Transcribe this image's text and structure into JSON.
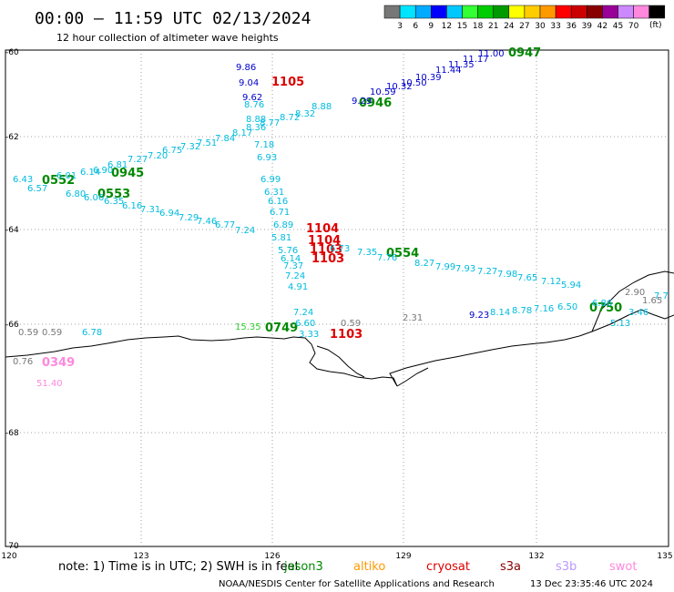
{
  "title": "00:00 – 11:59 UTC 02/13/2024",
  "subtitle": "12 hour collection of altimeter wave heights",
  "colorbar": {
    "colors": [
      "#777777",
      "#00e5ff",
      "#00aaff",
      "#0000ff",
      "#00c8ff",
      "#33ff33",
      "#00cc00",
      "#009900",
      "#ffff00",
      "#ffcc00",
      "#ff9900",
      "#ff0000",
      "#cc0000",
      "#880000",
      "#990099",
      "#cc88ff",
      "#ff88dd",
      "#000000"
    ],
    "labels": [
      "3",
      "6",
      "9",
      "12",
      "15",
      "18",
      "21",
      "24",
      "27",
      "30",
      "33",
      "36",
      "39",
      "42",
      "45",
      "70"
    ],
    "unit": "(ft)"
  },
  "axes": {
    "lat_labels": [
      "-60",
      "-62",
      "-64",
      "-66",
      "-68",
      "-70"
    ],
    "lon_labels": [
      "120",
      "123",
      "126",
      "129",
      "132",
      "135"
    ]
  },
  "time_labels": [
    {
      "text": "0947",
      "color": "#008800"
    },
    {
      "text": "1105",
      "color": "#dd0000"
    },
    {
      "text": "0946",
      "color": "#008800"
    },
    {
      "text": "0552",
      "color": "#008800"
    },
    {
      "text": "0945",
      "color": "#008800"
    },
    {
      "text": "0553",
      "color": "#008800"
    },
    {
      "text": "1104",
      "color": "#dd0000"
    },
    {
      "text": "1104",
      "color": "#dd0000"
    },
    {
      "text": "1103",
      "color": "#dd0000"
    },
    {
      "text": "1103",
      "color": "#dd0000"
    },
    {
      "text": "0554",
      "color": "#008800"
    },
    {
      "text": "0750",
      "color": "#008800"
    },
    {
      "text": "0749",
      "color": "#008800"
    },
    {
      "text": "1103",
      "color": "#dd0000"
    },
    {
      "text": "0349",
      "color": "#ff88dd"
    }
  ],
  "wave_values": [
    {
      "text": "11.00",
      "color": "#0000cc"
    },
    {
      "text": "11.17",
      "color": "#0000cc"
    },
    {
      "text": "11.35",
      "color": "#0000cc"
    },
    {
      "text": "11.44",
      "color": "#0000cc"
    },
    {
      "text": "10.39",
      "color": "#0000cc"
    },
    {
      "text": "10.50",
      "color": "#0000cc"
    },
    {
      "text": "10.32",
      "color": "#0000cc"
    },
    {
      "text": "10.59",
      "color": "#0000cc"
    },
    {
      "text": "9.29",
      "color": "#0000cc"
    },
    {
      "text": "9.62",
      "color": "#0000cc"
    },
    {
      "text": "9.86",
      "color": "#0000cc"
    },
    {
      "text": "9.04",
      "color": "#0000cc"
    },
    {
      "text": "8.88",
      "color": "#00bbdd"
    },
    {
      "text": "8.32",
      "color": "#00bbdd"
    },
    {
      "text": "8.72",
      "color": "#00bbdd"
    },
    {
      "text": "8.76",
      "color": "#00bbdd"
    },
    {
      "text": "8.88",
      "color": "#00bbdd"
    },
    {
      "text": "8.77",
      "color": "#00bbdd"
    },
    {
      "text": "8.36",
      "color": "#00bbdd"
    },
    {
      "text": "8.17",
      "color": "#00bbdd"
    },
    {
      "text": "7.84",
      "color": "#00bbdd"
    },
    {
      "text": "7.51",
      "color": "#00bbdd"
    },
    {
      "text": "7.32",
      "color": "#00bbdd"
    },
    {
      "text": "6.75",
      "color": "#00bbdd"
    },
    {
      "text": "7.20",
      "color": "#00bbdd"
    },
    {
      "text": "7.27",
      "color": "#00bbdd"
    },
    {
      "text": "6.81",
      "color": "#00bbdd"
    },
    {
      "text": "6.90",
      "color": "#00bbdd"
    },
    {
      "text": "6.14",
      "color": "#00bbdd"
    },
    {
      "text": "6.01",
      "color": "#00bbdd"
    },
    {
      "text": "6.43",
      "color": "#00bbdd"
    },
    {
      "text": "6.57",
      "color": "#00bbdd"
    },
    {
      "text": "6.80",
      "color": "#00bbdd"
    },
    {
      "text": "6.06",
      "color": "#00bbdd"
    },
    {
      "text": "6.35",
      "color": "#00bbdd"
    },
    {
      "text": "6.16",
      "color": "#00bbdd"
    },
    {
      "text": "7.31",
      "color": "#00bbdd"
    },
    {
      "text": "6.94",
      "color": "#00bbdd"
    },
    {
      "text": "7.29",
      "color": "#00bbdd"
    },
    {
      "text": "7.46",
      "color": "#00bbdd"
    },
    {
      "text": "6.77",
      "color": "#00bbdd"
    },
    {
      "text": "7.24",
      "color": "#00bbdd"
    },
    {
      "text": "7.18",
      "color": "#00bbdd"
    },
    {
      "text": "6.93",
      "color": "#00bbdd"
    },
    {
      "text": "6.99",
      "color": "#00bbdd"
    },
    {
      "text": "6.31",
      "color": "#00bbdd"
    },
    {
      "text": "6.16",
      "color": "#00bbdd"
    },
    {
      "text": "6.71",
      "color": "#00bbdd"
    },
    {
      "text": "6.89",
      "color": "#00bbdd"
    },
    {
      "text": "5.81",
      "color": "#00bbdd"
    },
    {
      "text": "5.76",
      "color": "#00bbdd"
    },
    {
      "text": "6.14",
      "color": "#00bbdd"
    },
    {
      "text": "7.37",
      "color": "#00bbdd"
    },
    {
      "text": "7.24",
      "color": "#00bbdd"
    },
    {
      "text": "4.91",
      "color": "#00bbdd"
    },
    {
      "text": "6.73",
      "color": "#00bbdd"
    },
    {
      "text": "7.35",
      "color": "#00bbdd"
    },
    {
      "text": "7.76",
      "color": "#00bbdd"
    },
    {
      "text": "8.27",
      "color": "#00bbdd"
    },
    {
      "text": "7.99",
      "color": "#00bbdd"
    },
    {
      "text": "7.93",
      "color": "#00bbdd"
    },
    {
      "text": "7.27",
      "color": "#00bbdd"
    },
    {
      "text": "7.98",
      "color": "#00bbdd"
    },
    {
      "text": "7.65",
      "color": "#00bbdd"
    },
    {
      "text": "7.12",
      "color": "#00bbdd"
    },
    {
      "text": "5.94",
      "color": "#00bbdd"
    },
    {
      "text": "7.24",
      "color": "#00bbdd"
    },
    {
      "text": "6.60",
      "color": "#00bbdd"
    },
    {
      "text": "3.33",
      "color": "#00bbdd"
    },
    {
      "text": "6.78",
      "color": "#00bbdd"
    },
    {
      "text": "8.14",
      "color": "#00bbdd"
    },
    {
      "text": "8.78",
      "color": "#00bbdd"
    },
    {
      "text": "7.16",
      "color": "#00bbdd"
    },
    {
      "text": "6.50",
      "color": "#00bbdd"
    },
    {
      "text": "6.86",
      "color": "#00bbdd"
    },
    {
      "text": "5.13",
      "color": "#00bbdd"
    },
    {
      "text": "3.46",
      "color": "#00bbdd"
    },
    {
      "text": "7.7",
      "color": "#00bbdd"
    },
    {
      "text": "9.23",
      "color": "#0000cc"
    },
    {
      "text": "0.59",
      "color": "#777777"
    },
    {
      "text": "0.59",
      "color": "#777777"
    },
    {
      "text": "0.76",
      "color": "#777777"
    },
    {
      "text": "0.59",
      "color": "#777777"
    },
    {
      "text": "2.31",
      "color": "#777777"
    },
    {
      "text": "2.90",
      "color": "#777777"
    },
    {
      "text": "1.65",
      "color": "#777777"
    },
    {
      "text": "51.40",
      "color": "#ff88dd"
    },
    {
      "text": "15.35",
      "color": "#33cc33"
    }
  ],
  "footer": {
    "note": "note: 1) Time is in UTC; 2) SWH is in feet",
    "satellites": [
      {
        "name": "jason3",
        "color": "#008800"
      },
      {
        "name": "altiko",
        "color": "#ff9900"
      },
      {
        "name": "cryosat",
        "color": "#dd0000"
      },
      {
        "name": "s3a",
        "color": "#880000"
      },
      {
        "name": "s3b",
        "color": "#bb99ff"
      },
      {
        "name": "swot",
        "color": "#ff88dd"
      }
    ],
    "credit": "NOAA/NESDIS Center for Satellite Applications and Research",
    "timestamp": "13 Dec 23:35:46 UTC 2024"
  }
}
